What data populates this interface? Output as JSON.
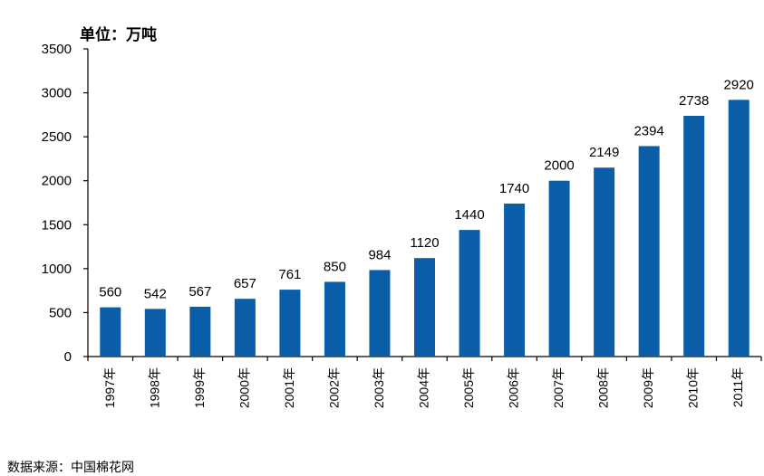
{
  "chart_data": {
    "type": "bar",
    "unit_label": "单位：万吨",
    "categories": [
      "1997年",
      "1998年",
      "1999年",
      "2000年",
      "2001年",
      "2002年",
      "2003年",
      "2004年",
      "2005年",
      "2006年",
      "2007年",
      "2008年",
      "2009年",
      "2010年",
      "2011年"
    ],
    "values": [
      560,
      542,
      567,
      657,
      761,
      850,
      984,
      1120,
      1440,
      1740,
      2000,
      2149,
      2394,
      2738,
      2920
    ],
    "yticks": [
      0,
      500,
      1000,
      1500,
      2000,
      2500,
      3000,
      3500
    ],
    "ylim": [
      0,
      3500
    ],
    "bar_color": "#0a5ea8",
    "grid": false,
    "legend": "none"
  },
  "source": "数据来源：中国棉花网"
}
